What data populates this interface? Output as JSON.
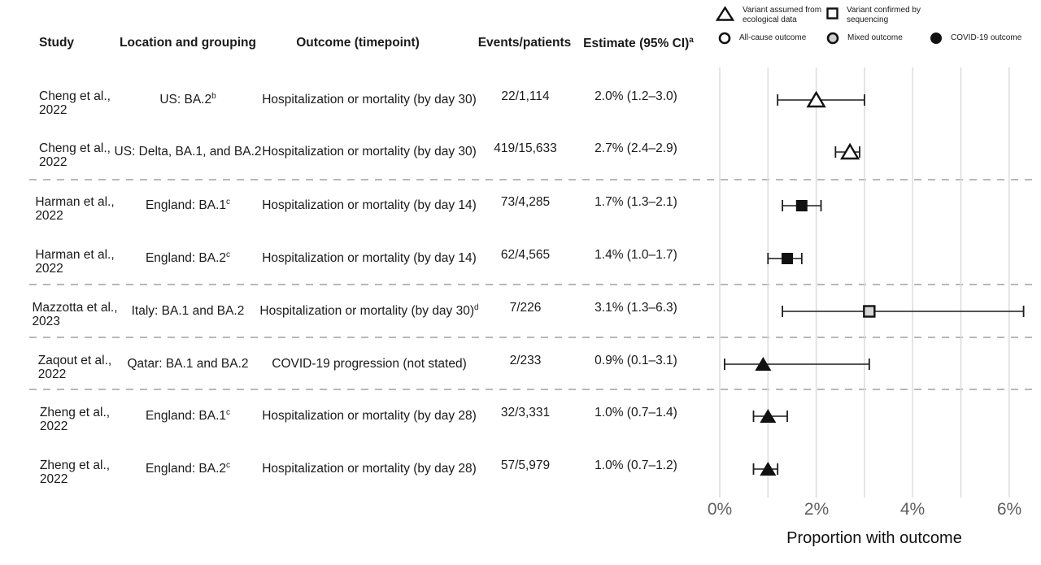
{
  "legend": {
    "items": [
      {
        "icon": "triangle-open-icon",
        "label": "Variant assumed from ecological data"
      },
      {
        "icon": "square-open-icon",
        "label": "Variant confirmed by sequencing"
      },
      {
        "icon": "circle-open-icon",
        "label": "All-cause outcome"
      },
      {
        "icon": "circle-gray-icon",
        "label": "Mixed outcome"
      },
      {
        "icon": "circle-filled-icon",
        "label": "COVID-19 outcome"
      }
    ]
  },
  "table": {
    "headers": {
      "study": "Study",
      "location": "Location and grouping",
      "outcome": "Outcome (timepoint)",
      "events": "Events/patients",
      "estimate": "Estimate (95% CI)",
      "estimate_sup": "a"
    },
    "rows": [
      {
        "study_line1": "Cheng et al.,",
        "study_line2": "2022",
        "location": "US: BA.2",
        "location_sup": "b",
        "outcome": "Hospitalization or mortality (by day 30)",
        "outcome_sup": "",
        "events": "22/1,114",
        "estimate": "2.0% (1.2–3.0)"
      },
      {
        "study_line1": "Cheng et al.,",
        "study_line2": "2022",
        "location": "US: Delta, BA.1, and BA.2",
        "location_sup": "",
        "outcome": "Hospitalization or mortality (by day 30)",
        "outcome_sup": "",
        "events": "419/15,633",
        "estimate": "2.7% (2.4–2.9)"
      },
      {
        "study_line1": "Harman et al.,",
        "study_line2": "2022",
        "location": "England: BA.1",
        "location_sup": "c",
        "outcome": "Hospitalization or mortality (by day 14)",
        "outcome_sup": "",
        "events": "73/4,285",
        "estimate": "1.7% (1.3–2.1)"
      },
      {
        "study_line1": "Harman et al.,",
        "study_line2": "2022",
        "location": "England: BA.2",
        "location_sup": "c",
        "outcome": "Hospitalization or mortality (by day 14)",
        "outcome_sup": "",
        "events": "62/4,565",
        "estimate": "1.4% (1.0–1.7)"
      },
      {
        "study_line1": "Mazzotta et al.,",
        "study_line2": "2023",
        "location": "Italy: BA.1 and BA.2",
        "location_sup": "",
        "outcome": "Hospitalization or mortality (by day 30)",
        "outcome_sup": "d",
        "events": "7/226",
        "estimate": "3.1% (1.3–6.3)"
      },
      {
        "study_line1": "Zaqout et al.,",
        "study_line2": "2022",
        "location": "Qatar: BA.1 and BA.2",
        "location_sup": "",
        "outcome": "COVID-19 progression (not stated)",
        "outcome_sup": "",
        "events": "2/233",
        "estimate": "0.9% (0.1–3.1)"
      },
      {
        "study_line1": "Zheng et al.,",
        "study_line2": "2022",
        "location": "England: BA.1",
        "location_sup": "c",
        "outcome": "Hospitalization or mortality (by day 28)",
        "outcome_sup": "",
        "events": "32/3,331",
        "estimate": "1.0% (0.7–1.4)"
      },
      {
        "study_line1": "Zheng et al.,",
        "study_line2": "2022",
        "location": "England: BA.2",
        "location_sup": "c",
        "outcome": "Hospitalization or mortality (by day 28)",
        "outcome_sup": "",
        "events": "57/5,979",
        "estimate": "1.0% (0.7–1.2)"
      }
    ]
  },
  "chart_data": {
    "type": "scatter",
    "subtype": "forest-plot",
    "title": "",
    "xlabel": "Proportion with outcome",
    "ylabel": "",
    "xlim": [
      0,
      6.6
    ],
    "grid": "vertical, every 1%",
    "x_ticks": [
      {
        "value": 0,
        "label": "0%"
      },
      {
        "value": 2,
        "label": "2%"
      },
      {
        "value": 4,
        "label": "4%"
      },
      {
        "value": 6,
        "label": "6%"
      }
    ],
    "points": [
      {
        "study": "Cheng et al., 2022 — US: BA.2",
        "estimate_pct": 2.0,
        "ci_low": 1.2,
        "ci_high": 3.0,
        "marker_shape": "triangle",
        "marker_fill": "open",
        "variant_determination": "assumed from ecological data",
        "outcome_class": "all-cause"
      },
      {
        "study": "Cheng et al., 2022 — US: Delta, BA.1, and BA.2",
        "estimate_pct": 2.7,
        "ci_low": 2.4,
        "ci_high": 2.9,
        "marker_shape": "triangle",
        "marker_fill": "open",
        "variant_determination": "assumed from ecological data",
        "outcome_class": "all-cause"
      },
      {
        "study": "Harman et al., 2022 — England: BA.1",
        "estimate_pct": 1.7,
        "ci_low": 1.3,
        "ci_high": 2.1,
        "marker_shape": "square",
        "marker_fill": "black",
        "variant_determination": "confirmed by sequencing",
        "outcome_class": "COVID-19"
      },
      {
        "study": "Harman et al., 2022 — England: BA.2",
        "estimate_pct": 1.4,
        "ci_low": 1.0,
        "ci_high": 1.7,
        "marker_shape": "square",
        "marker_fill": "black",
        "variant_determination": "confirmed by sequencing",
        "outcome_class": "COVID-19"
      },
      {
        "study": "Mazzotta et al., 2023 — Italy: BA.1 and BA.2",
        "estimate_pct": 3.1,
        "ci_low": 1.3,
        "ci_high": 6.3,
        "marker_shape": "square",
        "marker_fill": "gray",
        "variant_determination": "confirmed by sequencing",
        "outcome_class": "mixed"
      },
      {
        "study": "Zaqout et al., 2022 — Qatar: BA.1 and BA.2",
        "estimate_pct": 0.9,
        "ci_low": 0.1,
        "ci_high": 3.1,
        "marker_shape": "triangle",
        "marker_fill": "black",
        "variant_determination": "assumed from ecological data",
        "outcome_class": "COVID-19"
      },
      {
        "study": "Zheng et al., 2022 — England: BA.1",
        "estimate_pct": 1.0,
        "ci_low": 0.7,
        "ci_high": 1.4,
        "marker_shape": "triangle",
        "marker_fill": "black",
        "variant_determination": "assumed from ecological data",
        "outcome_class": "COVID-19"
      },
      {
        "study": "Zheng et al., 2022 — England: BA.2",
        "estimate_pct": 1.0,
        "ci_low": 0.7,
        "ci_high": 1.2,
        "marker_shape": "triangle",
        "marker_fill": "black",
        "variant_determination": "assumed from ecological data",
        "outcome_class": "COVID-19"
      }
    ],
    "colors": {
      "marker_black": "#111111",
      "marker_gray_fill": "#d6d6d6",
      "ci_line": "#1c1c1c",
      "gridline": "#dcdcdc",
      "separator": "#b8b8b8",
      "tick_label": "#606060"
    }
  }
}
